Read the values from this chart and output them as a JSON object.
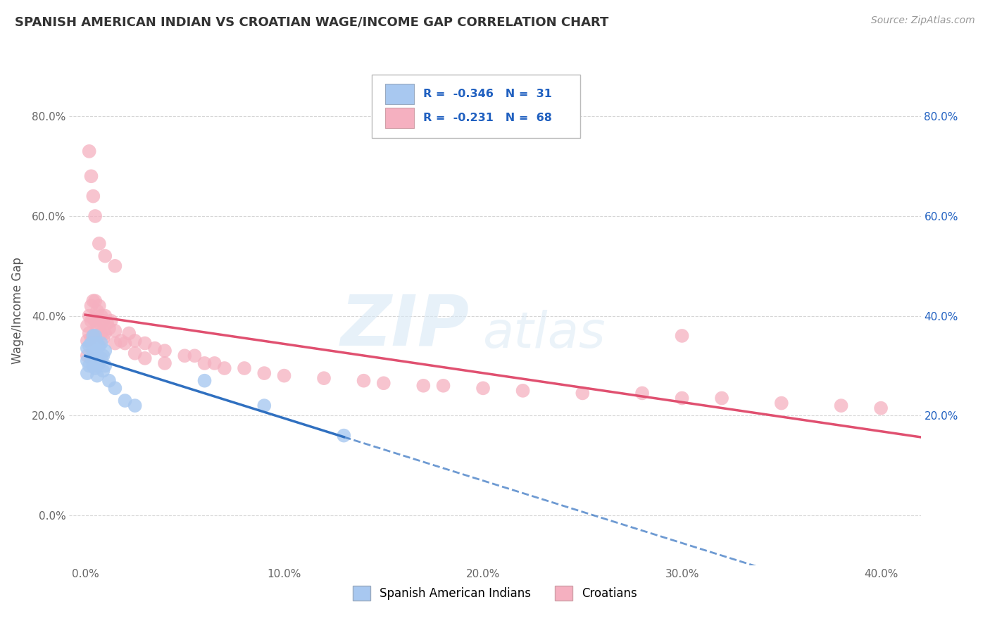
{
  "title": "SPANISH AMERICAN INDIAN VS CROATIAN WAGE/INCOME GAP CORRELATION CHART",
  "source": "Source: ZipAtlas.com",
  "ylabel": "Wage/Income Gap",
  "xlim": [
    -0.008,
    0.42
  ],
  "ylim": [
    -0.1,
    0.92
  ],
  "yticks": [
    0.0,
    0.2,
    0.4,
    0.6,
    0.8
  ],
  "ytick_labels": [
    "0.0%",
    "20.0%",
    "40.0%",
    "60.0%",
    "80.0%"
  ],
  "xticks": [
    0.0,
    0.1,
    0.2,
    0.3,
    0.4
  ],
  "xtick_labels": [
    "0.0%",
    "10.0%",
    "20.0%",
    "30.0%",
    "40.0%"
  ],
  "right_ytick_labels": [
    "80.0%",
    "60.0%",
    "40.0%",
    "20.0%"
  ],
  "right_ytick_positions": [
    0.8,
    0.6,
    0.4,
    0.2
  ],
  "legend_r1": "-0.346",
  "legend_n1": "31",
  "legend_r2": "-0.231",
  "legend_n2": "68",
  "color_sai": "#a8c8f0",
  "color_cro": "#f5b0c0",
  "color_sai_line": "#3070c0",
  "color_cro_line": "#e05070",
  "color_legend_text": "#2060c0",
  "watermark_zip": "ZIP",
  "watermark_atlas": "atlas",
  "sai_x": [
    0.001,
    0.001,
    0.001,
    0.002,
    0.002,
    0.003,
    0.003,
    0.004,
    0.004,
    0.004,
    0.005,
    0.005,
    0.005,
    0.006,
    0.006,
    0.006,
    0.007,
    0.007,
    0.008,
    0.008,
    0.009,
    0.009,
    0.01,
    0.01,
    0.012,
    0.015,
    0.02,
    0.025,
    0.06,
    0.09,
    0.13
  ],
  "sai_y": [
    0.335,
    0.31,
    0.285,
    0.34,
    0.3,
    0.345,
    0.315,
    0.36,
    0.33,
    0.3,
    0.36,
    0.33,
    0.295,
    0.345,
    0.315,
    0.28,
    0.34,
    0.305,
    0.345,
    0.315,
    0.32,
    0.29,
    0.33,
    0.3,
    0.27,
    0.255,
    0.23,
    0.22,
    0.27,
    0.22,
    0.16
  ],
  "cro_x": [
    0.001,
    0.001,
    0.001,
    0.002,
    0.002,
    0.003,
    0.003,
    0.003,
    0.004,
    0.004,
    0.004,
    0.005,
    0.005,
    0.006,
    0.006,
    0.007,
    0.007,
    0.008,
    0.008,
    0.009,
    0.009,
    0.01,
    0.01,
    0.011,
    0.012,
    0.013,
    0.015,
    0.015,
    0.018,
    0.02,
    0.022,
    0.025,
    0.025,
    0.03,
    0.03,
    0.035,
    0.04,
    0.04,
    0.05,
    0.055,
    0.06,
    0.065,
    0.07,
    0.08,
    0.09,
    0.1,
    0.12,
    0.14,
    0.15,
    0.17,
    0.18,
    0.2,
    0.22,
    0.25,
    0.28,
    0.3,
    0.32,
    0.35,
    0.38,
    0.4,
    0.002,
    0.003,
    0.004,
    0.005,
    0.007,
    0.01,
    0.015,
    0.3
  ],
  "cro_y": [
    0.38,
    0.35,
    0.32,
    0.4,
    0.365,
    0.42,
    0.39,
    0.355,
    0.43,
    0.395,
    0.36,
    0.43,
    0.39,
    0.41,
    0.375,
    0.42,
    0.385,
    0.4,
    0.365,
    0.39,
    0.355,
    0.4,
    0.365,
    0.385,
    0.375,
    0.39,
    0.37,
    0.345,
    0.35,
    0.345,
    0.365,
    0.35,
    0.325,
    0.345,
    0.315,
    0.335,
    0.33,
    0.305,
    0.32,
    0.32,
    0.305,
    0.305,
    0.295,
    0.295,
    0.285,
    0.28,
    0.275,
    0.27,
    0.265,
    0.26,
    0.26,
    0.255,
    0.25,
    0.245,
    0.245,
    0.235,
    0.235,
    0.225,
    0.22,
    0.215,
    0.73,
    0.68,
    0.64,
    0.6,
    0.545,
    0.52,
    0.5,
    0.36
  ]
}
